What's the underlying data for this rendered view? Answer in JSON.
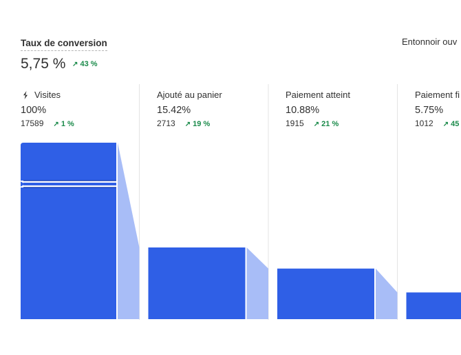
{
  "header": {
    "title": "Taux de conversion",
    "value": "5,75 %",
    "change": "43 %",
    "right_link": "Entonnoir ouv"
  },
  "icons": {
    "trend_up": "arrow-up-right-icon",
    "source": "plug-icon"
  },
  "colors": {
    "bar": "#2f5fe6",
    "connector": "#a8bdf7",
    "positive": "#1a8a4a",
    "divider": "#e3e3e3"
  },
  "chart_data": {
    "type": "bar",
    "title": "",
    "categories": [
      "Visites",
      "Ajouté au panier",
      "Paiement atteint",
      "Paiement fi"
    ],
    "percent_labels": [
      "100%",
      "15.42%",
      "10.88%",
      "5.75%"
    ],
    "values": [
      100,
      15.42,
      10.88,
      5.75
    ],
    "counts": [
      "17589",
      "2713",
      "1915",
      "1012"
    ],
    "changes": [
      "1 %",
      "19 %",
      "21 %",
      "45"
    ],
    "axis_break_on_first_bar": true,
    "grid": false,
    "legend": "none"
  }
}
